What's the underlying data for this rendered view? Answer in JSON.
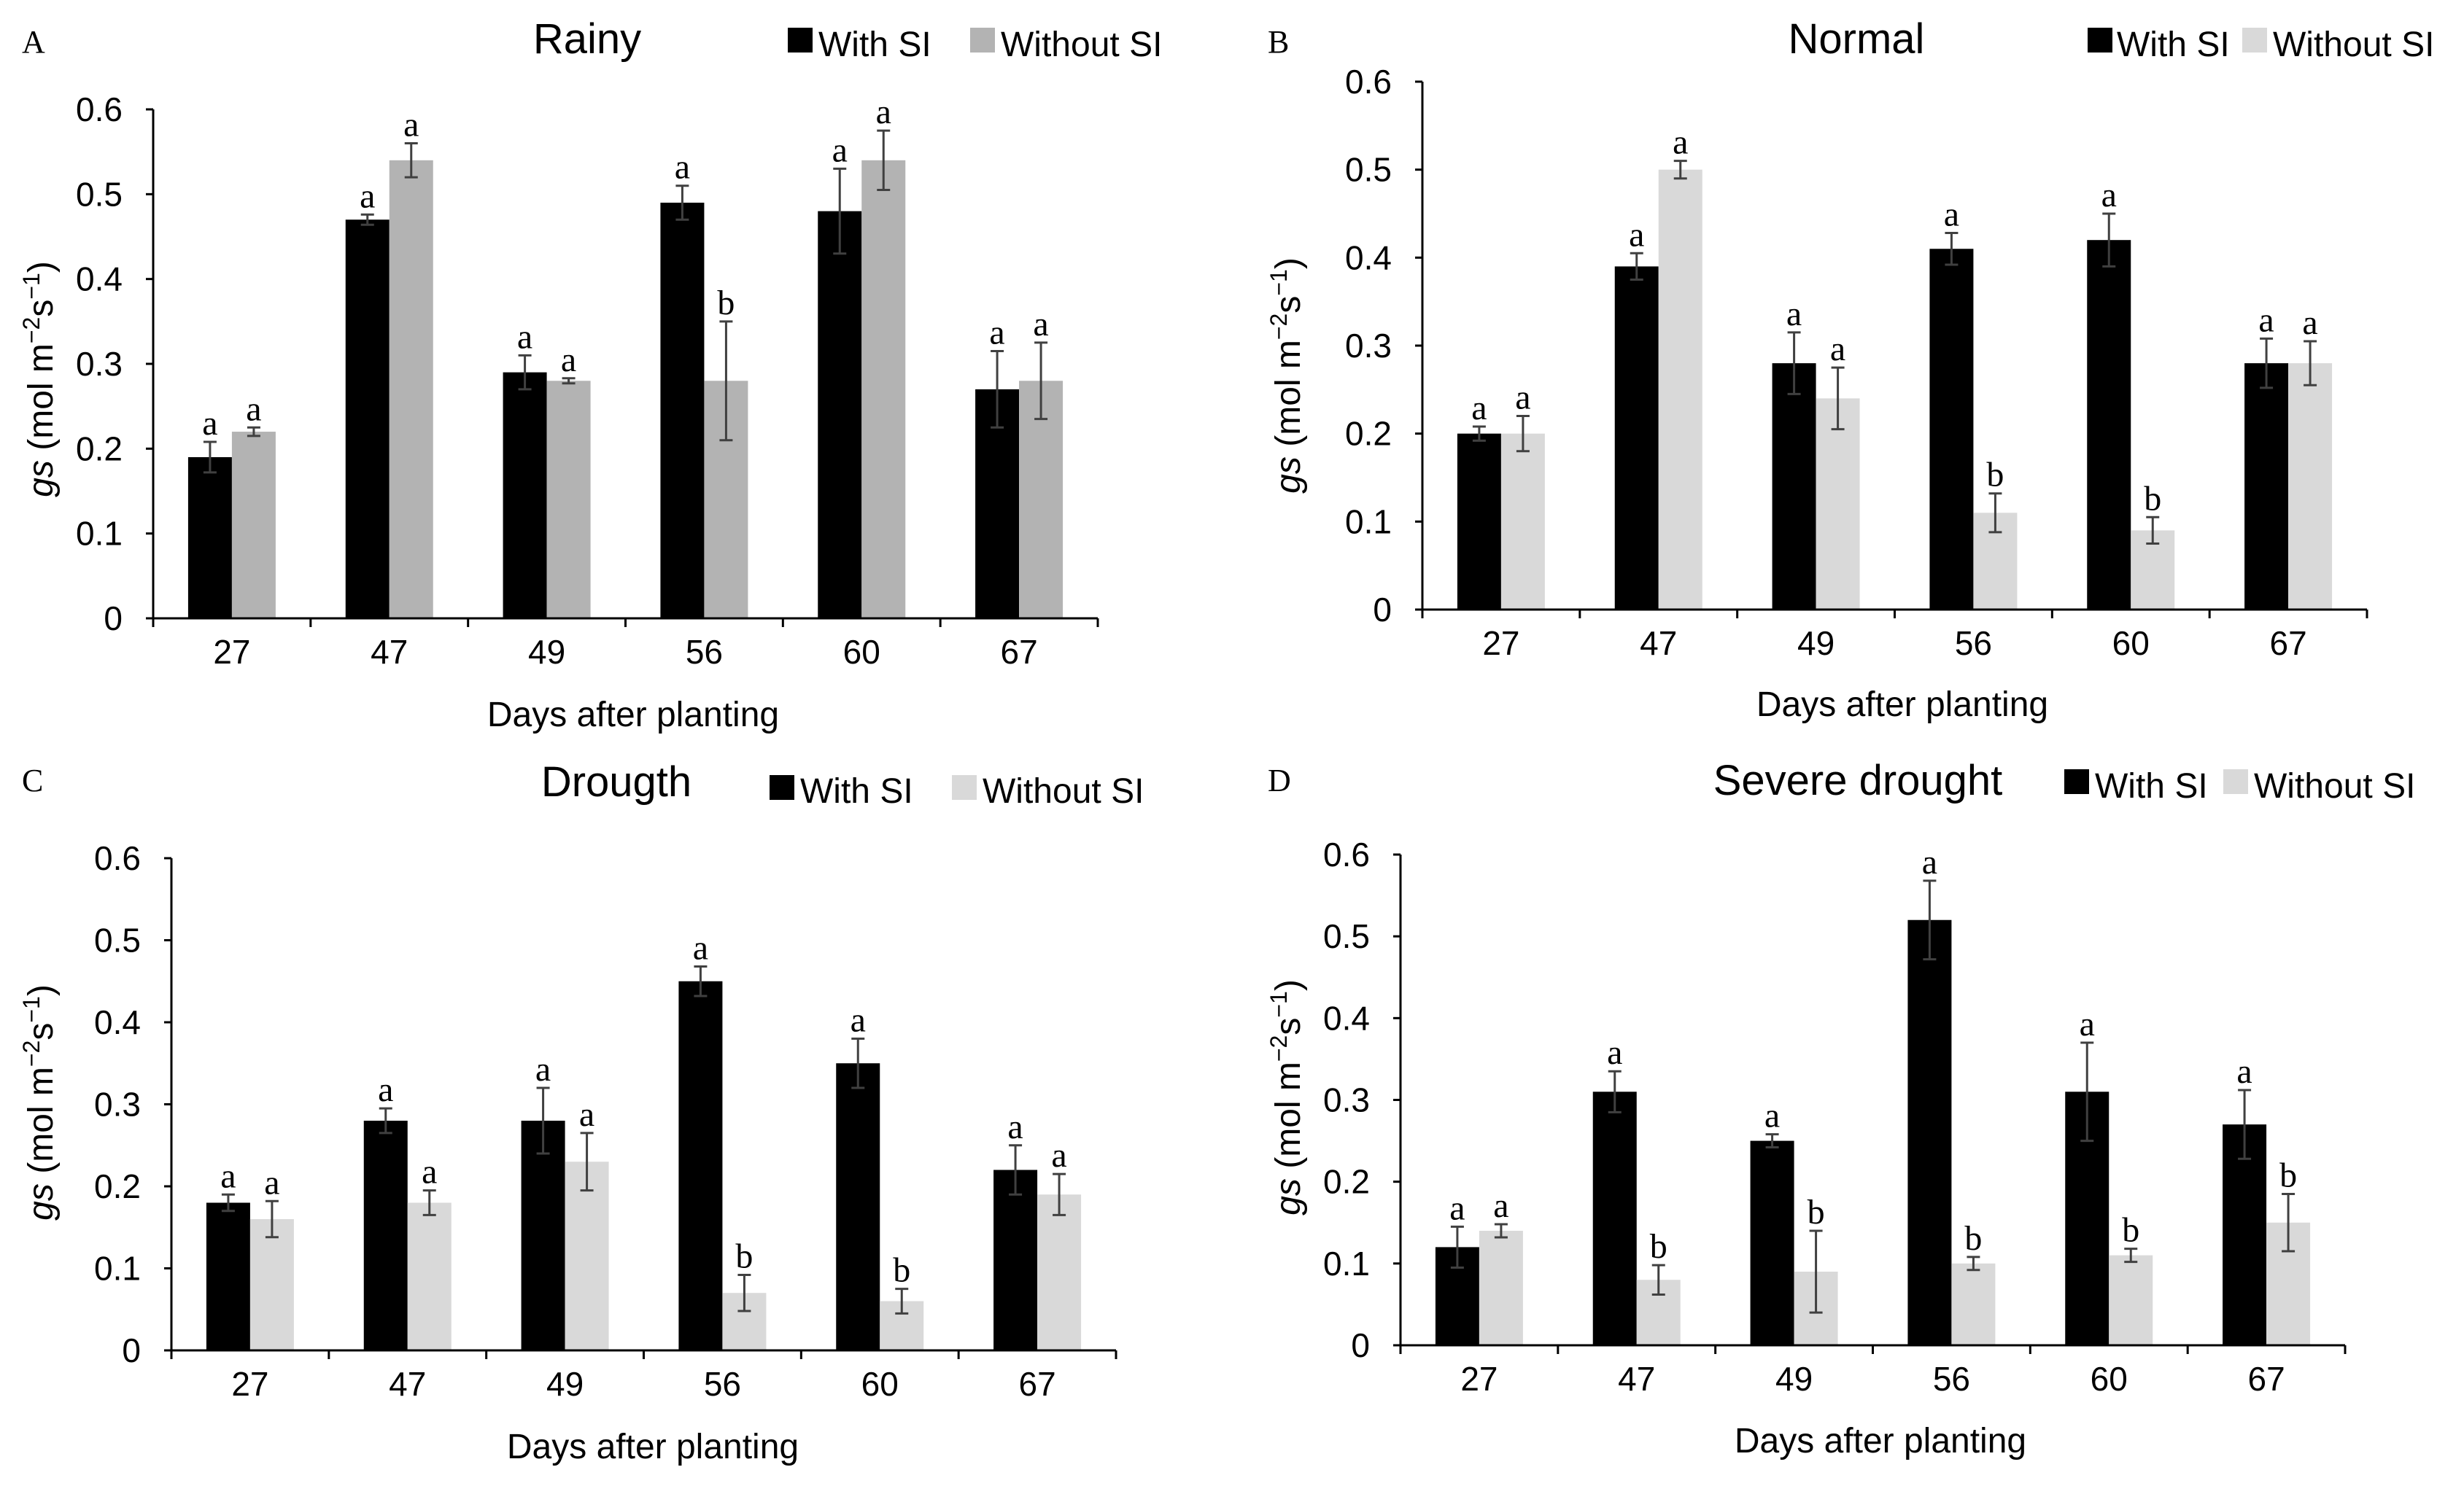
{
  "figure": {
    "series_names": [
      "With SI",
      "Without SI"
    ],
    "colors": {
      "with_si": "#000000",
      "without_si_panel_a": "#b3b3b3",
      "without_si_other": "#d9d9d9",
      "error_bar": "#404040",
      "axis": "#000000"
    }
  },
  "chart_data": [
    {
      "panel": "A",
      "type": "bar",
      "title": "Rainy",
      "xlabel": "Days after planting",
      "ylabel": {
        "italic": "gs",
        "prefix": " (mol m",
        "exp1": "−2",
        "mid": "s",
        "exp2": "−1",
        "suffix": ")"
      },
      "ylim": [
        0,
        0.6
      ],
      "yticks": [
        "0",
        "0.1",
        "0.2",
        "0.3",
        "0.4",
        "0.5",
        "0.6"
      ],
      "categories": [
        "27",
        "47",
        "49",
        "56",
        "60",
        "67"
      ],
      "legend": [
        "With SI",
        "Without SI"
      ],
      "series": [
        {
          "name": "With SI",
          "values": [
            0.19,
            0.47,
            0.29,
            0.49,
            0.48,
            0.27
          ],
          "errors": [
            0.018,
            0.006,
            0.02,
            0.02,
            0.05,
            0.045
          ],
          "letters": [
            "a",
            "a",
            "a",
            "a",
            "a",
            "a"
          ]
        },
        {
          "name": "Without SI",
          "values": [
            0.22,
            0.54,
            0.28,
            0.28,
            0.54,
            0.28
          ],
          "errors": [
            0.005,
            0.02,
            0.003,
            0.07,
            0.035,
            0.045
          ],
          "letters": [
            "a",
            "a",
            "a",
            "b",
            "a",
            "a"
          ]
        }
      ]
    },
    {
      "panel": "B",
      "type": "bar",
      "title": "Normal",
      "xlabel": "Days after planting",
      "ylabel": {
        "italic": "gs",
        "prefix": " (mol m",
        "exp1": "−2",
        "mid": "s",
        "exp2": "−1",
        "suffix": ")"
      },
      "ylim": [
        0,
        0.6
      ],
      "yticks": [
        "0",
        "0.1",
        "0.2",
        "0.3",
        "0.4",
        "0.5",
        "0.6"
      ],
      "categories": [
        "27",
        "47",
        "49",
        "56",
        "60",
        "67"
      ],
      "legend": [
        "With SI",
        "Without SI"
      ],
      "series": [
        {
          "name": "With SI",
          "values": [
            0.2,
            0.39,
            0.28,
            0.41,
            0.42,
            0.28
          ],
          "errors": [
            0.008,
            0.015,
            0.035,
            0.018,
            0.03,
            0.028
          ],
          "letters": [
            "a",
            "a",
            "a",
            "a",
            "a",
            "a"
          ]
        },
        {
          "name": "Without SI",
          "values": [
            0.2,
            0.5,
            0.24,
            0.11,
            0.09,
            0.28
          ],
          "errors": [
            0.02,
            0.01,
            0.035,
            0.022,
            0.015,
            0.025
          ],
          "letters": [
            "a",
            "a",
            "a",
            "b",
            "b",
            "a"
          ]
        }
      ]
    },
    {
      "panel": "C",
      "type": "bar",
      "title": "Drougth",
      "xlabel": "Days after planting",
      "ylabel": {
        "italic": "gs",
        "prefix": " (mol m",
        "exp1": "−2",
        "mid": "s",
        "exp2": "−1",
        "suffix": ")"
      },
      "ylim": [
        0,
        0.6
      ],
      "yticks": [
        "0",
        "0.1",
        "0.2",
        "0.3",
        "0.4",
        "0.5",
        "0.6"
      ],
      "categories": [
        "27",
        "47",
        "49",
        "56",
        "60",
        "67"
      ],
      "legend": [
        "With SI",
        "Without SI"
      ],
      "series": [
        {
          "name": "With SI",
          "values": [
            0.18,
            0.28,
            0.28,
            0.45,
            0.35,
            0.22
          ],
          "errors": [
            0.01,
            0.015,
            0.04,
            0.018,
            0.03,
            0.03
          ],
          "letters": [
            "a",
            "a",
            "a",
            "a",
            "a",
            "a"
          ]
        },
        {
          "name": "Without SI",
          "values": [
            0.16,
            0.18,
            0.23,
            0.07,
            0.06,
            0.19
          ],
          "errors": [
            0.022,
            0.015,
            0.035,
            0.022,
            0.015,
            0.025
          ],
          "letters": [
            "a",
            "a",
            "a",
            "b",
            "b",
            "a"
          ]
        }
      ]
    },
    {
      "panel": "D",
      "type": "bar",
      "title": "Severe drought",
      "xlabel": "Days after planting",
      "ylabel": {
        "italic": "gs",
        "prefix": " (mol m",
        "exp1": "−2",
        "mid": "s",
        "exp2": "−1",
        "suffix": ")"
      },
      "ylim": [
        0,
        0.6
      ],
      "yticks": [
        "0",
        "0.1",
        "0.2",
        "0.3",
        "0.4",
        "0.5",
        "0.6"
      ],
      "categories": [
        "27",
        "47",
        "49",
        "56",
        "60",
        "67"
      ],
      "legend": [
        "With SI",
        "Without SI"
      ],
      "series": [
        {
          "name": "With SI",
          "values": [
            0.12,
            0.31,
            0.25,
            0.52,
            0.31,
            0.27
          ],
          "errors": [
            0.025,
            0.025,
            0.008,
            0.048,
            0.06,
            0.042
          ],
          "letters": [
            "a",
            "a",
            "a",
            "a",
            "a",
            "a"
          ]
        },
        {
          "name": "Without SI",
          "values": [
            0.14,
            0.08,
            0.09,
            0.1,
            0.11,
            0.15
          ],
          "errors": [
            0.008,
            0.018,
            0.05,
            0.008,
            0.008,
            0.035
          ],
          "letters": [
            "a",
            "b",
            "b",
            "b",
            "b",
            "b"
          ]
        }
      ]
    }
  ]
}
